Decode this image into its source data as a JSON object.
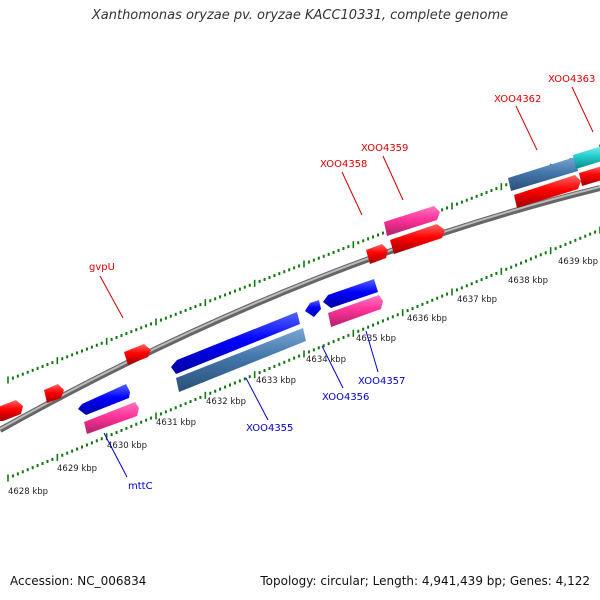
{
  "title": "Xanthomonas oryzae pv. oryzae KACC10331, complete genome",
  "footer": {
    "accession": "Accession: NC_006834",
    "summary": "Topology: circular; Length: 4,941,439 bp; Genes: 4,122"
  },
  "colors": {
    "forward_cds": "#ff0000",
    "reverse_cds": "#0000ff",
    "forward_rna_like": "#ff3399",
    "reverse_pale": "#4477aa",
    "cyan_feature": "#22cccc",
    "forward_label": "#dd0000",
    "reverse_label": "#0000cc",
    "backbone": "#888888",
    "ticks": "#117711"
  },
  "kbp_labels": [
    "4628 kbp",
    "4629 kbp",
    "4630 kbp",
    "4631 kbp",
    "4632 kbp",
    "4633 kbp",
    "4634 kbp",
    "4635 kbp",
    "4636 kbp",
    "4637 kbp",
    "4638 kbp",
    "4639 kbp"
  ],
  "gene_labels": [
    {
      "text": "gvpU",
      "strand": "forward"
    },
    {
      "text": "XOO4358",
      "strand": "forward"
    },
    {
      "text": "XOO4359",
      "strand": "forward"
    },
    {
      "text": "XOO4362",
      "strand": "forward"
    },
    {
      "text": "XOO4363",
      "strand": "forward"
    },
    {
      "text": "mttC",
      "strand": "reverse"
    },
    {
      "text": "XOO4355",
      "strand": "reverse"
    },
    {
      "text": "XOO4356",
      "strand": "reverse"
    },
    {
      "text": "XOO4357",
      "strand": "reverse"
    }
  ]
}
